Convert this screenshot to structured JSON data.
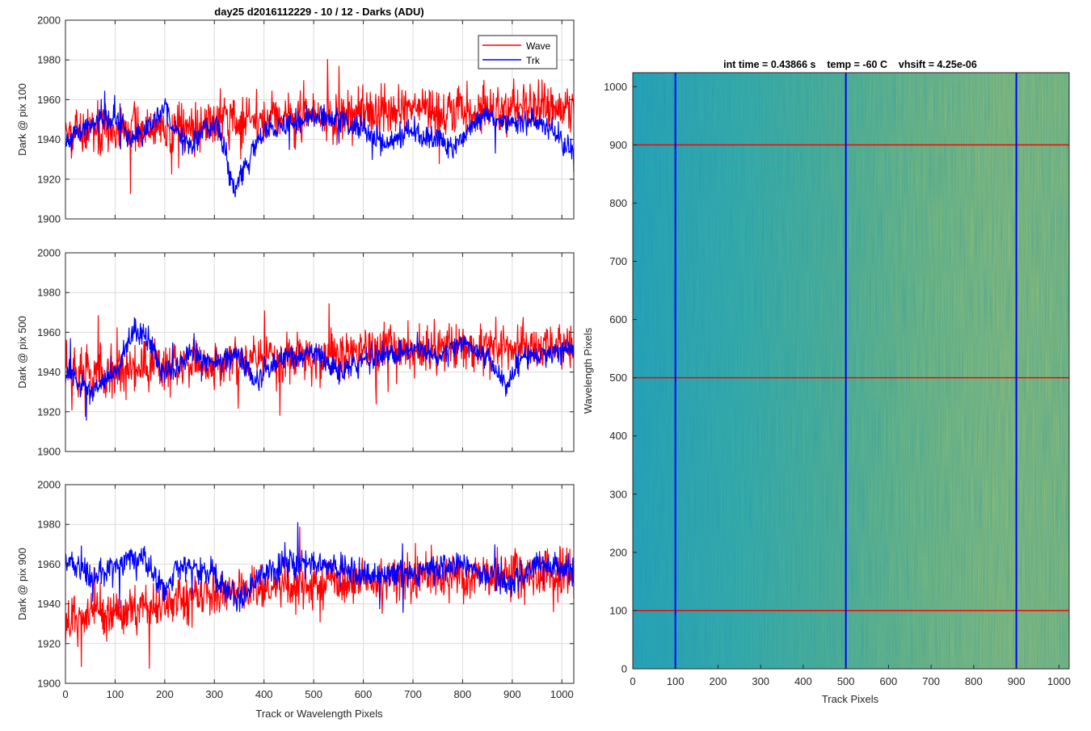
{
  "figure": {
    "title": "day25 d2016112229 - 10 / 12 - Darks (ADU)"
  },
  "colors": {
    "wave": "#ff0000",
    "trk": "#0000ff",
    "grid": "#dcdcdc",
    "heatmap_low": "#1fa8b8",
    "heatmap_high": "#b8c860"
  },
  "chart_data": [
    {
      "type": "line",
      "title": "day25 d2016112229 - 10 / 12 - Darks (ADU)",
      "xlabel": "",
      "ylabel": "Dark @ pix 100",
      "xlim": [
        0,
        1024
      ],
      "ylim": [
        1900,
        2000
      ],
      "xticks": [
        "0",
        "100",
        "200",
        "300",
        "400",
        "500",
        "600",
        "700",
        "800",
        "900",
        "1000"
      ],
      "yticks": [
        "1900",
        "1920",
        "1940",
        "1960",
        "1980",
        "2000"
      ],
      "grid": true,
      "legend": "top-right",
      "series": [
        {
          "name": "Wave",
          "mean": [
            [
              0,
              1943
            ],
            [
              100,
              1944
            ],
            [
              200,
              1946
            ],
            [
              300,
              1948
            ],
            [
              400,
              1950
            ],
            [
              500,
              1951
            ],
            [
              600,
              1952
            ],
            [
              700,
              1953
            ],
            [
              800,
              1954
            ],
            [
              900,
              1955
            ],
            [
              1024,
              1956
            ]
          ],
          "noise": 10
        },
        {
          "name": "Trk",
          "mean": [
            [
              0,
              1938
            ],
            [
              30,
              1944
            ],
            [
              60,
              1950
            ],
            [
              100,
              1950
            ],
            [
              130,
              1940
            ],
            [
              160,
              1944
            ],
            [
              200,
              1958
            ],
            [
              220,
              1945
            ],
            [
              250,
              1936
            ],
            [
              280,
              1946
            ],
            [
              310,
              1946
            ],
            [
              340,
              1915
            ],
            [
              360,
              1925
            ],
            [
              400,
              1945
            ],
            [
              450,
              1948
            ],
            [
              500,
              1952
            ],
            [
              550,
              1950
            ],
            [
              600,
              1945
            ],
            [
              650,
              1938
            ],
            [
              700,
              1945
            ],
            [
              740,
              1940
            ],
            [
              780,
              1935
            ],
            [
              820,
              1948
            ],
            [
              860,
              1952
            ],
            [
              900,
              1948
            ],
            [
              950,
              1950
            ],
            [
              1024,
              1935
            ]
          ],
          "noise": 5
        }
      ]
    },
    {
      "type": "line",
      "xlabel": "",
      "ylabel": "Dark @ pix 500",
      "xlim": [
        0,
        1024
      ],
      "ylim": [
        1900,
        2000
      ],
      "xticks": [
        "0",
        "100",
        "200",
        "300",
        "400",
        "500",
        "600",
        "700",
        "800",
        "900",
        "1000"
      ],
      "yticks": [
        "1900",
        "1920",
        "1940",
        "1960",
        "1980",
        "2000"
      ],
      "grid": true,
      "series": [
        {
          "name": "Wave",
          "mean": [
            [
              0,
              1940
            ],
            [
              100,
              1941
            ],
            [
              200,
              1942
            ],
            [
              300,
              1944
            ],
            [
              400,
              1946
            ],
            [
              500,
              1948
            ],
            [
              600,
              1950
            ],
            [
              700,
              1951
            ],
            [
              800,
              1952
            ],
            [
              900,
              1952
            ],
            [
              1024,
              1953
            ]
          ],
          "noise": 10
        },
        {
          "name": "Trk",
          "mean": [
            [
              0,
              1940
            ],
            [
              50,
              1930
            ],
            [
              100,
              1940
            ],
            [
              140,
              1962
            ],
            [
              170,
              1955
            ],
            [
              200,
              1940
            ],
            [
              250,
              1948
            ],
            [
              300,
              1944
            ],
            [
              350,
              1948
            ],
            [
              380,
              1935
            ],
            [
              420,
              1945
            ],
            [
              500,
              1950
            ],
            [
              550,
              1940
            ],
            [
              600,
              1945
            ],
            [
              700,
              1952
            ],
            [
              750,
              1948
            ],
            [
              800,
              1955
            ],
            [
              860,
              1945
            ],
            [
              890,
              1930
            ],
            [
              920,
              1948
            ],
            [
              1024,
              1952
            ]
          ],
          "noise": 5
        }
      ]
    },
    {
      "type": "line",
      "xlabel": "Track or Wavelength Pixels",
      "ylabel": "Dark @ pix 900",
      "xlim": [
        0,
        1024
      ],
      "ylim": [
        1900,
        2000
      ],
      "xticks": [
        "0",
        "100",
        "200",
        "300",
        "400",
        "500",
        "600",
        "700",
        "800",
        "900",
        "1000"
      ],
      "yticks": [
        "1900",
        "1920",
        "1940",
        "1960",
        "1980",
        "2000"
      ],
      "grid": true,
      "series": [
        {
          "name": "Wave",
          "mean": [
            [
              0,
              1928
            ],
            [
              50,
              1935
            ],
            [
              100,
              1935
            ],
            [
              200,
              1940
            ],
            [
              300,
              1945
            ],
            [
              400,
              1948
            ],
            [
              500,
              1950
            ],
            [
              600,
              1952
            ],
            [
              700,
              1954
            ],
            [
              800,
              1955
            ],
            [
              900,
              1955
            ],
            [
              1024,
              1955
            ]
          ],
          "noise": 10
        },
        {
          "name": "Trk",
          "mean": [
            [
              0,
              1962
            ],
            [
              50,
              1955
            ],
            [
              100,
              1958
            ],
            [
              130,
              1962
            ],
            [
              160,
              1962
            ],
            [
              200,
              1948
            ],
            [
              230,
              1958
            ],
            [
              300,
              1955
            ],
            [
              350,
              1942
            ],
            [
              400,
              1955
            ],
            [
              450,
              1960
            ],
            [
              500,
              1960
            ],
            [
              600,
              1955
            ],
            [
              700,
              1955
            ],
            [
              800,
              1960
            ],
            [
              850,
              1955
            ],
            [
              900,
              1950
            ],
            [
              950,
              1960
            ],
            [
              1024,
              1958
            ]
          ],
          "noise": 6
        }
      ]
    },
    {
      "type": "heatmap",
      "title": "int time = 0.43866 s    temp = -60 C    vhsift = 4.25e-06",
      "xlabel": "Track Pixels",
      "ylabel": "Wavelength Pixels",
      "xlim": [
        0,
        1024
      ],
      "ylim": [
        0,
        1024
      ],
      "xticks": [
        "0",
        "100",
        "200",
        "300",
        "400",
        "500",
        "600",
        "700",
        "800",
        "900",
        "1000"
      ],
      "yticks": [
        "0",
        "100",
        "200",
        "300",
        "400",
        "500",
        "600",
        "700",
        "800",
        "900",
        "1000"
      ],
      "grid": false,
      "vertical_lines": [
        100,
        500,
        900
      ],
      "horizontal_lines": [
        100,
        500,
        900
      ]
    }
  ]
}
